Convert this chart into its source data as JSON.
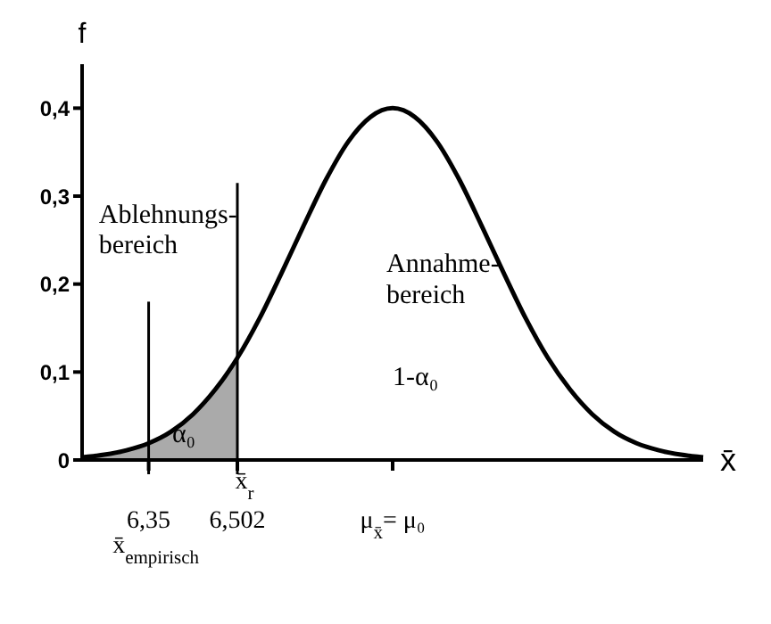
{
  "chart_data": {
    "type": "line",
    "xlabel": "x̄",
    "ylabel": "f",
    "categories": [
      null,
      null,
      null,
      "6,35",
      null,
      null,
      null,
      "6,502",
      null,
      null,
      null,
      null,
      null,
      null,
      "μ$_{x̄}$= μ₀",
      null,
      null,
      null,
      null,
      null,
      null,
      null,
      null,
      null,
      null,
      null,
      null,
      null,
      null
    ],
    "series": [
      {
        "type": "area",
        "color": "#aaaaaa",
        "values": [
          0.003,
          0.006,
          0.011,
          0.019,
          0.032,
          0.052,
          0.08,
          0.116,
          null,
          null,
          null,
          null,
          null,
          null,
          null,
          null,
          null,
          null,
          null,
          null,
          null,
          null,
          null,
          null,
          null,
          null,
          null,
          null,
          null
        ]
      },
      {
        "color": "#000000",
        "values": [
          0.003,
          0.006,
          0.011,
          0.019,
          0.032,
          0.052,
          0.08,
          0.116,
          0.161,
          0.213,
          0.267,
          0.319,
          0.362,
          0.39,
          0.4,
          0.39,
          0.362,
          0.319,
          0.267,
          0.213,
          0.161,
          0.116,
          0.08,
          0.052,
          0.032,
          0.019,
          0.011,
          0.006,
          0.003
        ]
      }
    ],
    "ylim": [
      0,
      0.45
    ],
    "yticks": [
      0,
      {
        "value": 0.1,
        "label": "0,1"
      },
      {
        "value": 0.2,
        "label": "0,2"
      },
      {
        "value": 0.3,
        "label": "0,3"
      },
      {
        "value": 0.4,
        "label": "0,4"
      }
    ],
    "ref_lines": [
      {
        "axis": "x",
        "value": "6,502",
        "color": "#000000"
      },
      {
        "axis": "x",
        "value": "6,35",
        "color": "#000000"
      }
    ],
    "annotations": [
      "x̄$_{r}$",
      "x̄$_{empirisch}$",
      "Ablehnungs-\nbereich",
      "Annahme-\nbereich",
      "1-α₀",
      "α₀"
    ],
    "grid": false,
    "marker": "none",
    "line_style": "solid"
  }
}
